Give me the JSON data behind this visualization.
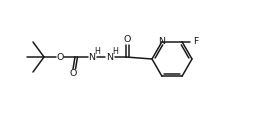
{
  "bg_color": "#ffffff",
  "line_color": "#1a1a1a",
  "line_width": 1.1,
  "font_size": 6.8,
  "font_size_small": 5.8,
  "figsize": [
    2.7,
    1.17
  ],
  "dpi": 100,
  "xlim": [
    0,
    270
  ],
  "ylim": [
    0,
    117
  ]
}
